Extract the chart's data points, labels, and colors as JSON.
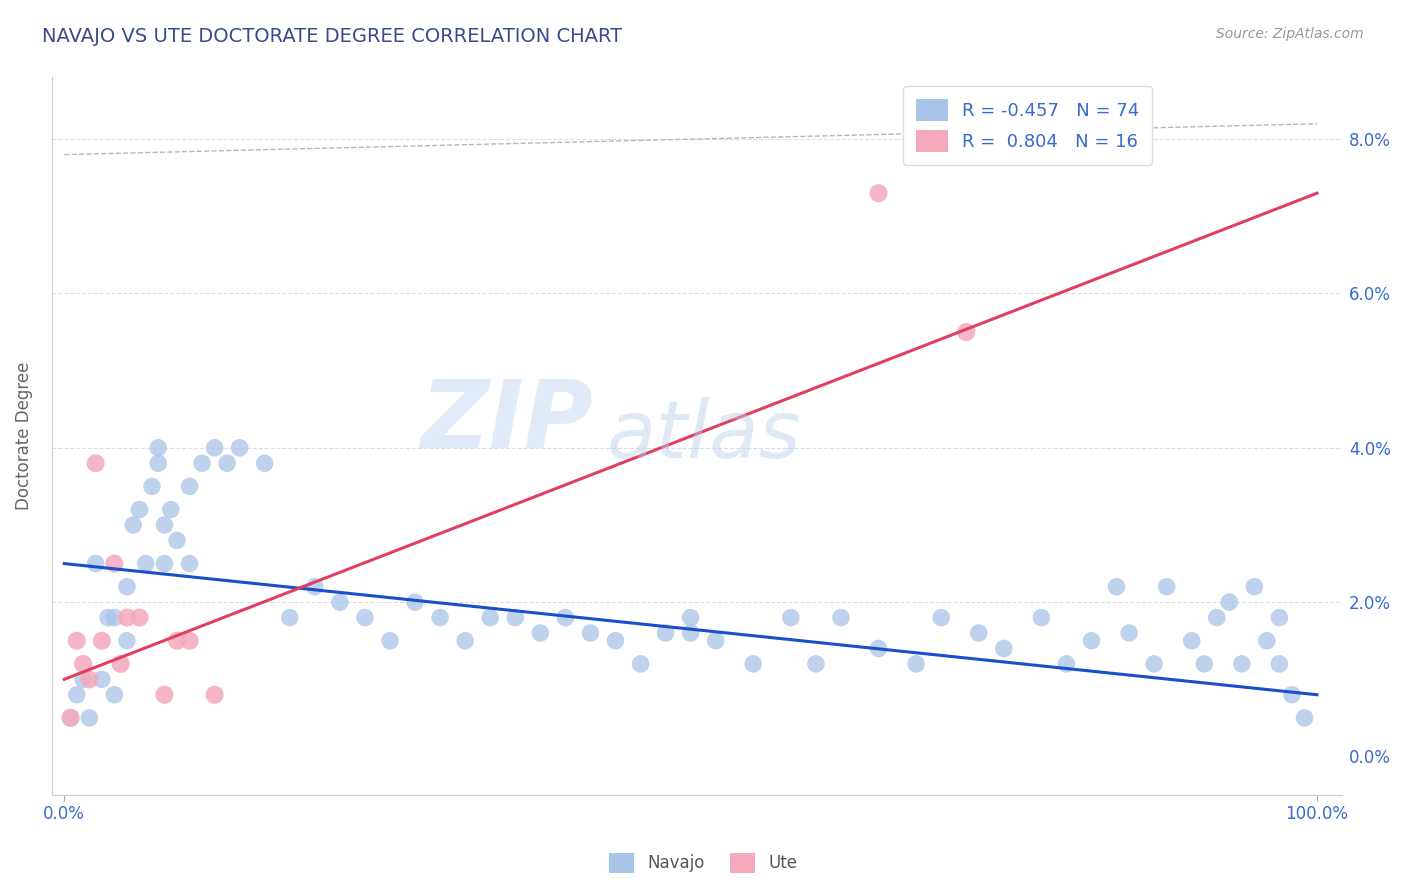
{
  "title": "NAVAJO VS UTE DOCTORATE DEGREE CORRELATION CHART",
  "source": "Source: ZipAtlas.com",
  "ylabel": "Doctorate Degree",
  "xlim": [
    -0.01,
    1.02
  ],
  "ylim": [
    -0.005,
    0.088
  ],
  "yticks": [
    0.0,
    0.02,
    0.04,
    0.06,
    0.08
  ],
  "ytick_labels": [
    "0.0%",
    "2.0%",
    "4.0%",
    "6.0%",
    "8.0%"
  ],
  "xticks": [
    0.0,
    1.0
  ],
  "xtick_labels": [
    "0.0%",
    "100.0%"
  ],
  "navajo_R": -0.457,
  "navajo_N": 74,
  "ute_R": 0.804,
  "ute_N": 16,
  "navajo_color": "#a8c4e8",
  "ute_color": "#f4a8bc",
  "navajo_line_color": "#1a4fcc",
  "ute_line_color": "#e04060",
  "dashed_line_color": "#b0b8c8",
  "background_color": "#ffffff",
  "title_color": "#3a4a8a",
  "source_color": "#999999",
  "watermark_zip": "ZIP",
  "watermark_atlas": "atlas",
  "navajo_x": [
    0.005,
    0.01,
    0.015,
    0.02,
    0.025,
    0.03,
    0.035,
    0.04,
    0.04,
    0.05,
    0.05,
    0.055,
    0.06,
    0.065,
    0.07,
    0.075,
    0.075,
    0.08,
    0.08,
    0.085,
    0.09,
    0.1,
    0.1,
    0.11,
    0.12,
    0.13,
    0.14,
    0.16,
    0.18,
    0.2,
    0.22,
    0.24,
    0.26,
    0.28,
    0.3,
    0.32,
    0.34,
    0.36,
    0.38,
    0.4,
    0.42,
    0.44,
    0.46,
    0.48,
    0.5,
    0.5,
    0.52,
    0.55,
    0.58,
    0.6,
    0.62,
    0.65,
    0.68,
    0.7,
    0.73,
    0.75,
    0.78,
    0.8,
    0.82,
    0.84,
    0.85,
    0.87,
    0.88,
    0.9,
    0.91,
    0.92,
    0.93,
    0.94,
    0.95,
    0.96,
    0.97,
    0.97,
    0.98,
    0.99
  ],
  "navajo_y": [
    0.005,
    0.008,
    0.01,
    0.005,
    0.025,
    0.01,
    0.018,
    0.008,
    0.018,
    0.015,
    0.022,
    0.03,
    0.032,
    0.025,
    0.035,
    0.038,
    0.04,
    0.03,
    0.025,
    0.032,
    0.028,
    0.035,
    0.025,
    0.038,
    0.04,
    0.038,
    0.04,
    0.038,
    0.018,
    0.022,
    0.02,
    0.018,
    0.015,
    0.02,
    0.018,
    0.015,
    0.018,
    0.018,
    0.016,
    0.018,
    0.016,
    0.015,
    0.012,
    0.016,
    0.018,
    0.016,
    0.015,
    0.012,
    0.018,
    0.012,
    0.018,
    0.014,
    0.012,
    0.018,
    0.016,
    0.014,
    0.018,
    0.012,
    0.015,
    0.022,
    0.016,
    0.012,
    0.022,
    0.015,
    0.012,
    0.018,
    0.02,
    0.012,
    0.022,
    0.015,
    0.018,
    0.012,
    0.008,
    0.005
  ],
  "ute_x": [
    0.005,
    0.01,
    0.015,
    0.02,
    0.025,
    0.03,
    0.04,
    0.045,
    0.05,
    0.06,
    0.08,
    0.09,
    0.1,
    0.12,
    0.65,
    0.72
  ],
  "ute_y": [
    0.005,
    0.015,
    0.012,
    0.01,
    0.038,
    0.015,
    0.025,
    0.012,
    0.018,
    0.018,
    0.008,
    0.015,
    0.015,
    0.008,
    0.073,
    0.055
  ],
  "navajo_line_x": [
    0.0,
    1.0
  ],
  "navajo_line_y": [
    0.025,
    0.008
  ],
  "ute_line_x": [
    0.0,
    1.0
  ],
  "ute_line_y": [
    0.01,
    0.073
  ],
  "diag_line_x": [
    0.0,
    1.0
  ],
  "diag_line_y": [
    0.078,
    0.082
  ]
}
